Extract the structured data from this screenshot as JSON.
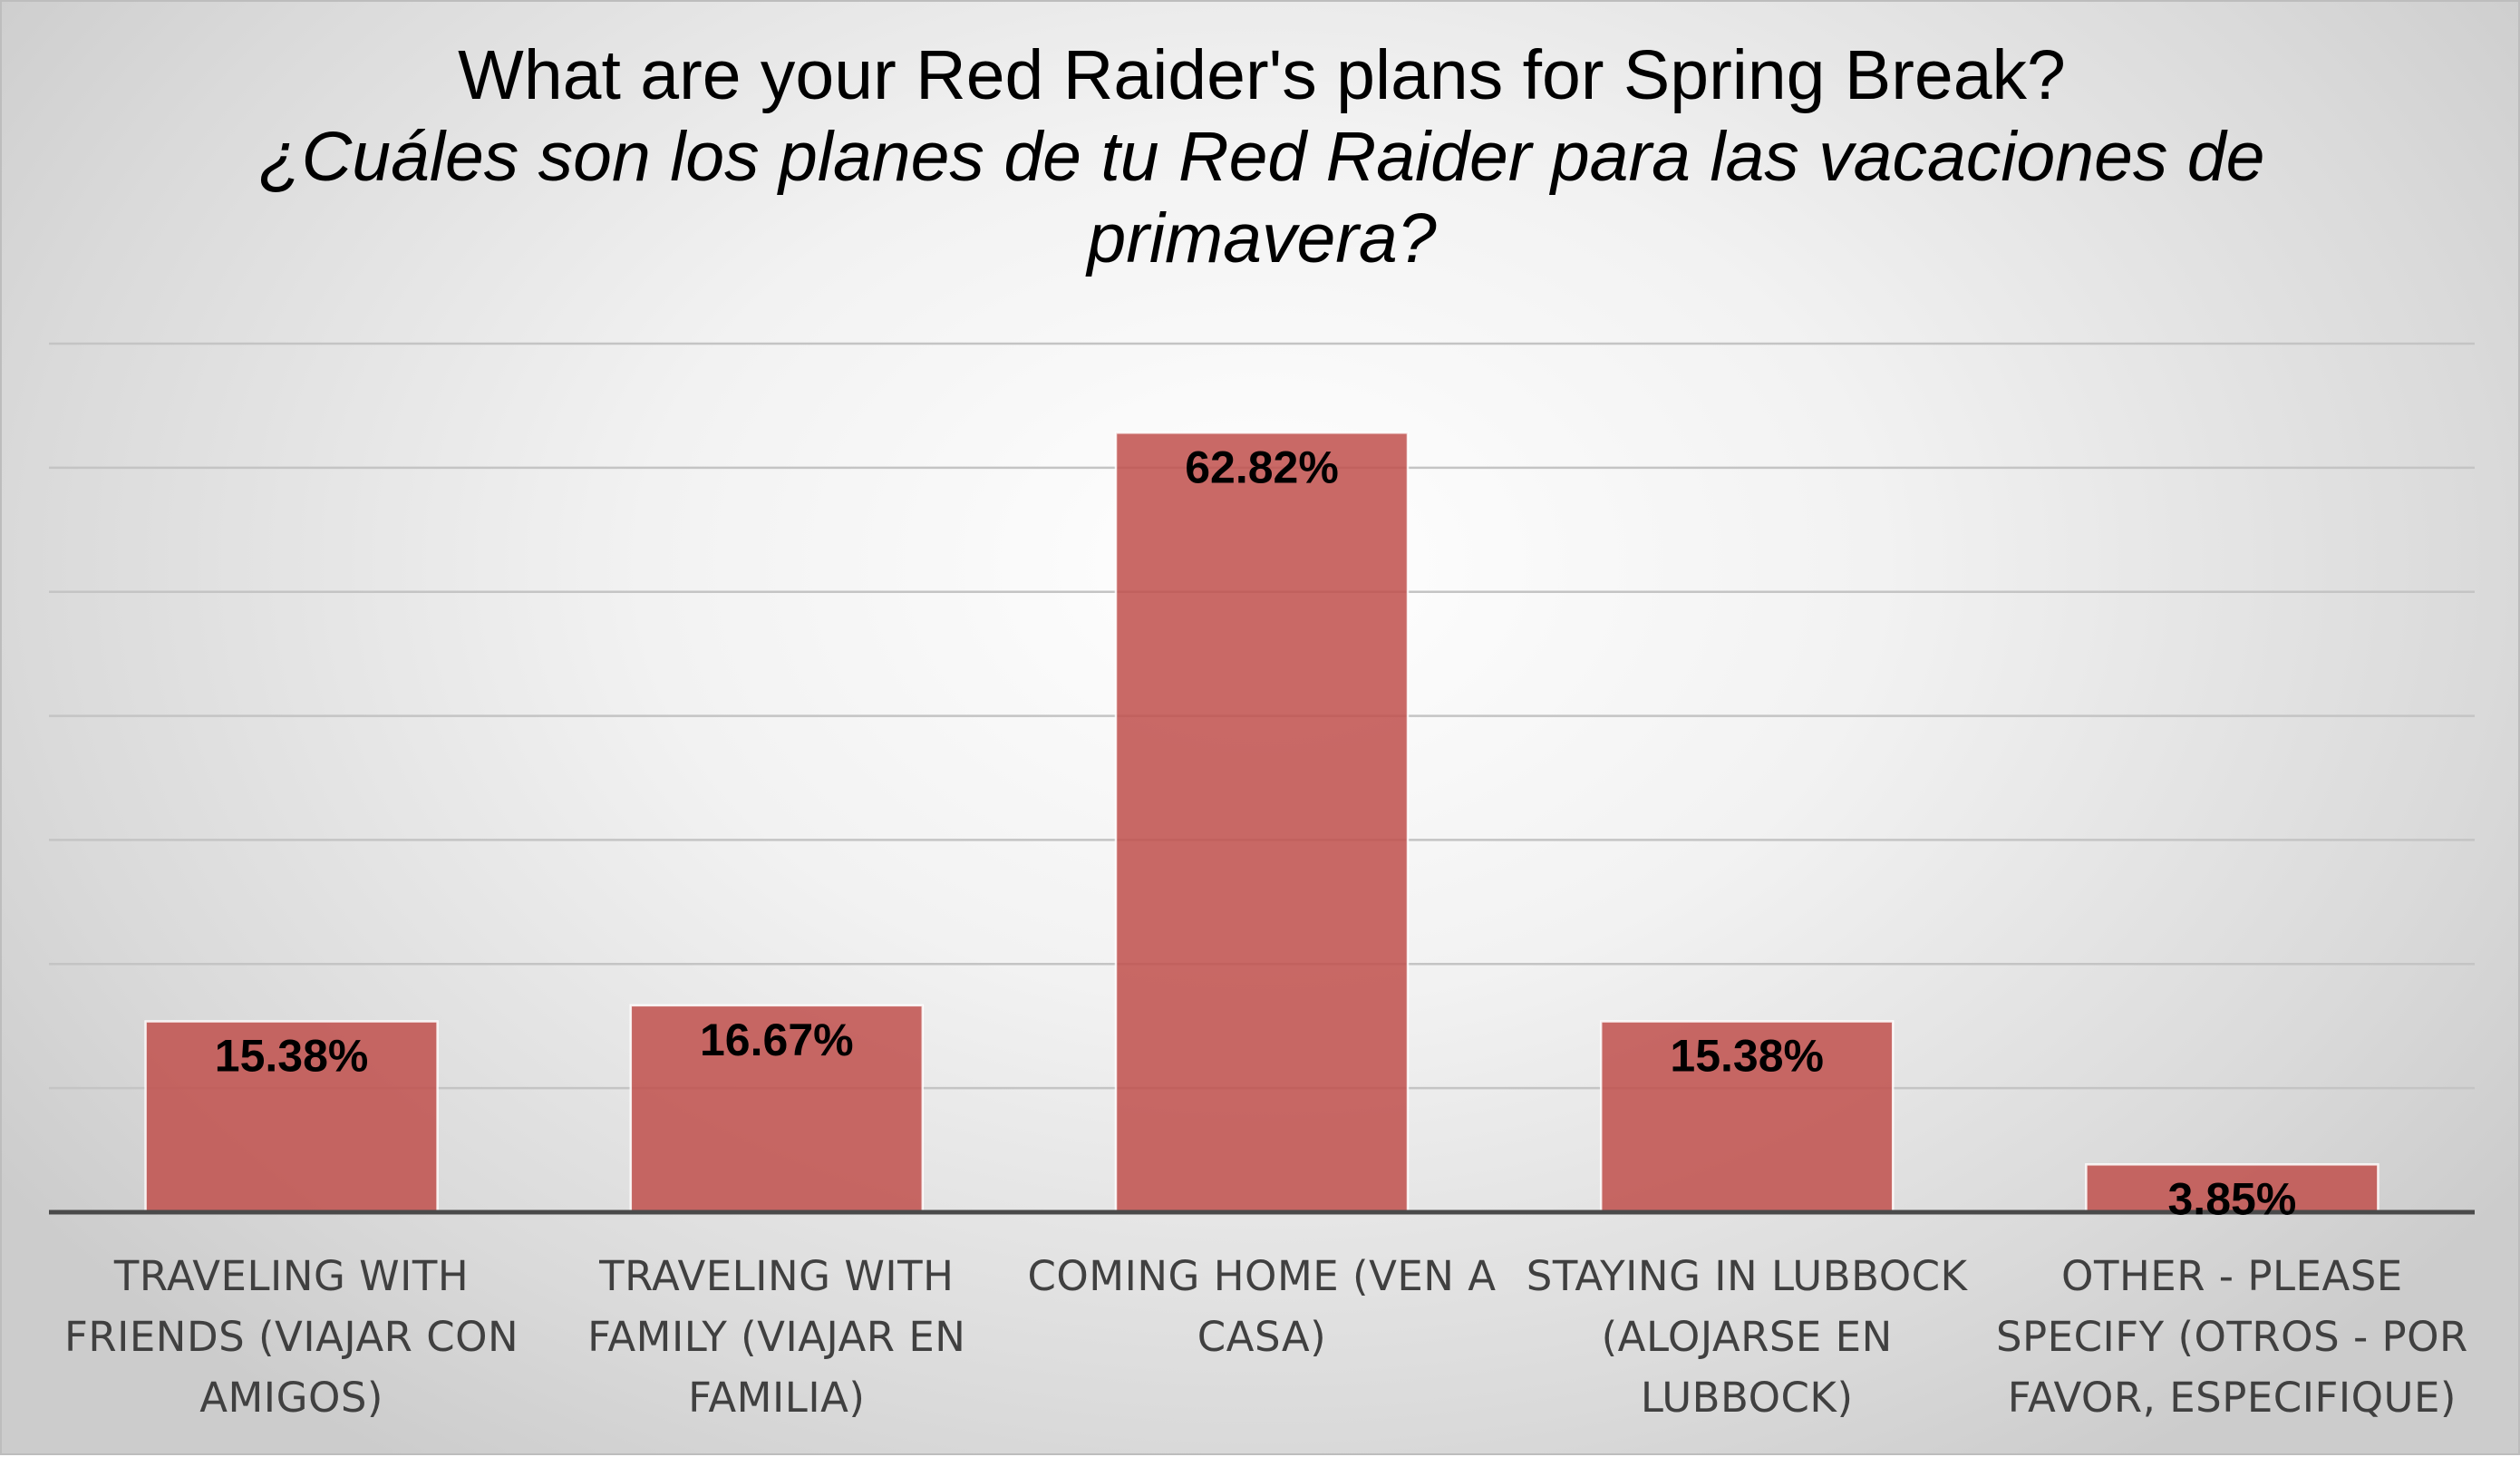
{
  "chart_data": {
    "type": "bar",
    "title": "What are your Red Raider's plans for Spring Break?",
    "subtitle": "¿Cuáles son los planes de tu Red Raider para las vacaciones de primavera?",
    "categories": [
      "TRAVELING WITH FRIENDS (VIAJAR CON AMIGOS)",
      "TRAVELING WITH FAMILY (VIAJAR EN FAMILIA)",
      "COMING HOME (VEN A CASA)",
      "STAYING IN LUBBOCK (ALOJARSE EN LUBBOCK)",
      "OTHER - PLEASE SPECIFY (OTROS - POR FAVOR, ESPECIFIQUE)"
    ],
    "values": [
      15.38,
      16.67,
      62.82,
      15.38,
      3.85
    ],
    "data_labels": [
      "15.38%",
      "16.67%",
      "62.82%",
      "15.38%",
      "3.85%"
    ],
    "xlabel": "",
    "ylabel": "",
    "ylim": [
      0,
      70
    ],
    "y_gridline_step": 10,
    "y_axis_labels_shown": false,
    "grid": true,
    "legend": "none",
    "colors": {
      "bar": "#c0504d",
      "bar_outline": "#ffffff",
      "gridline": "#c4c4c4",
      "axis": "#4a4a4a",
      "category_text": "#404040",
      "title_text": "#000000"
    }
  }
}
